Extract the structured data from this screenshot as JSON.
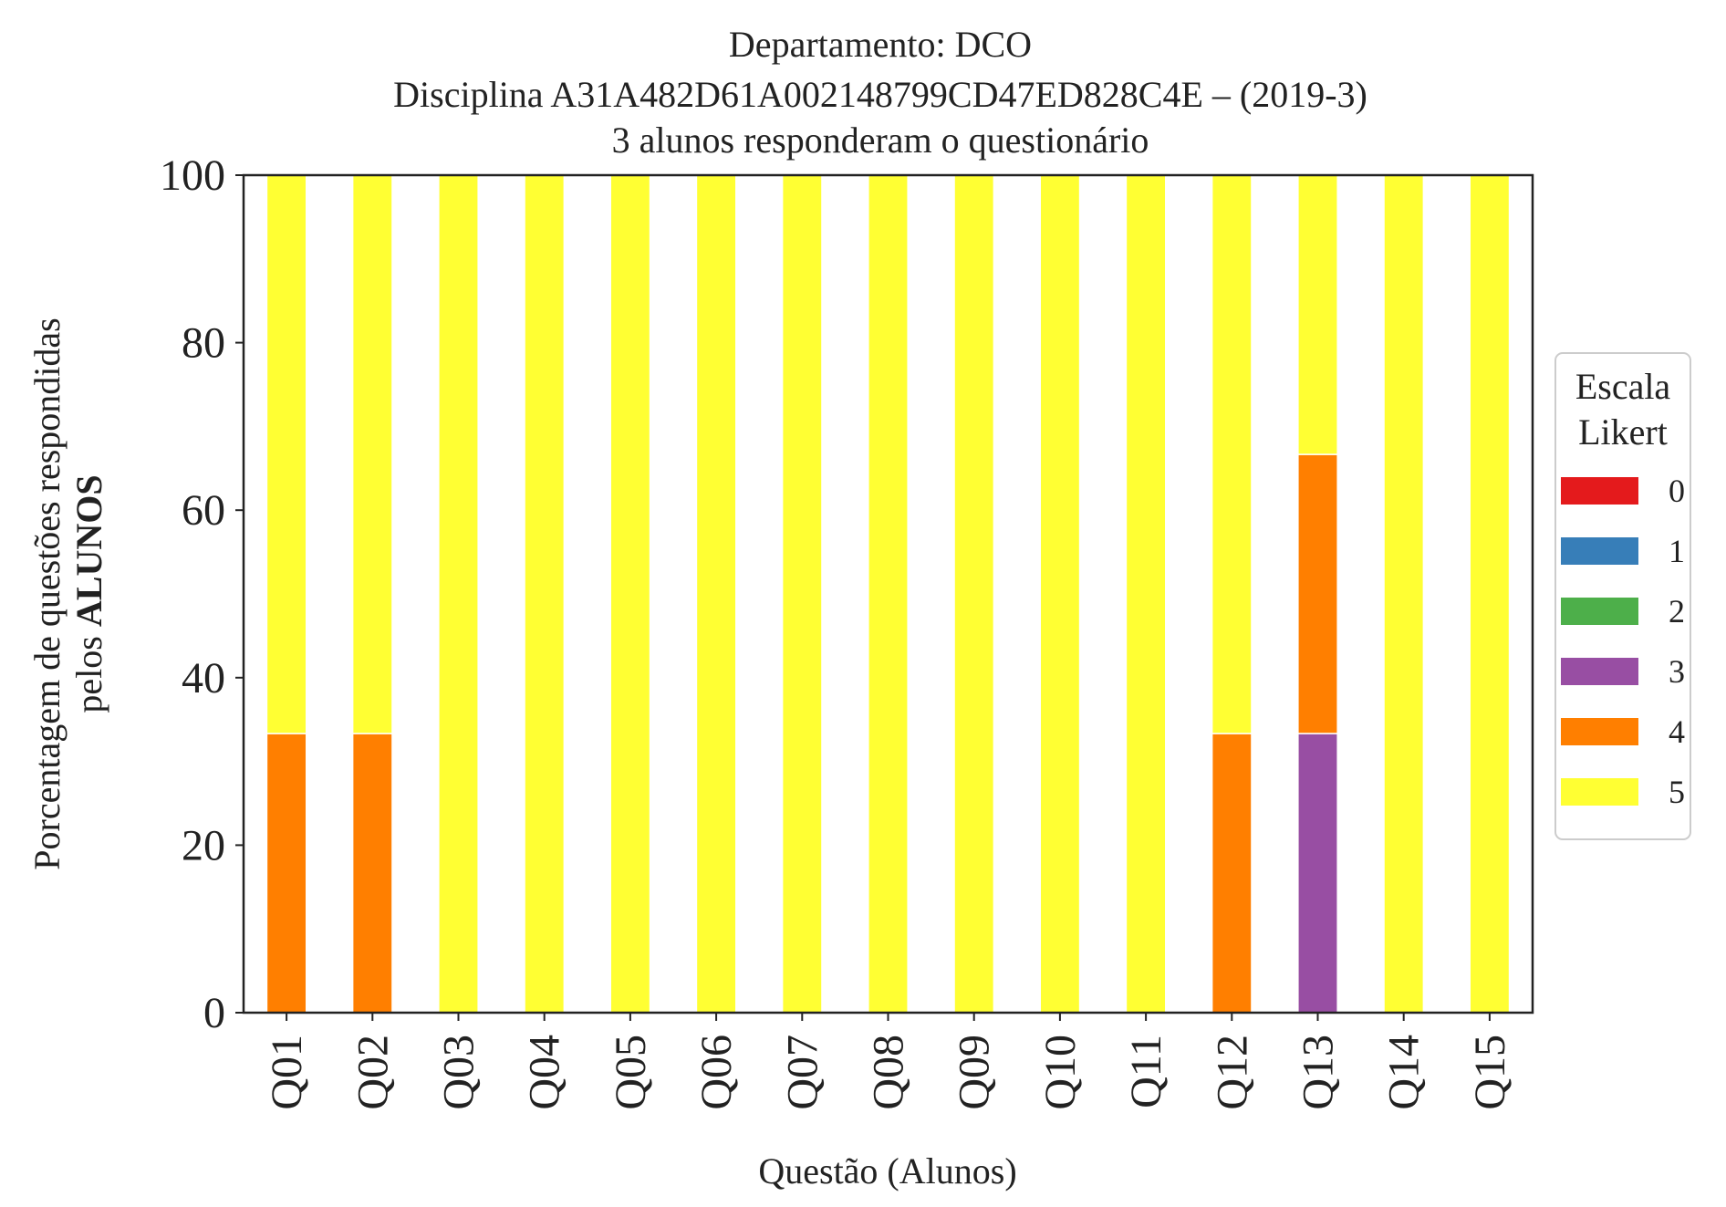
{
  "chart_data": {
    "type": "bar",
    "stacked": true,
    "title_lines": [
      "Departamento: DCO",
      "Disciplina A31A482D61A002148799CD47ED828C4E – (2019-3)",
      "3 alunos responderam o questionário"
    ],
    "xlabel": "Questão (Alunos)",
    "ylabel_line1": "Porcentagem de questões respondidas",
    "ylabel_line2_prefix": "pelos ",
    "ylabel_line2_bold": "ALUNOS",
    "ylim": [
      0,
      100
    ],
    "yticks": [
      "0",
      "20",
      "40",
      "60",
      "80",
      "100"
    ],
    "grid": false,
    "categories": [
      "Q01",
      "Q02",
      "Q03",
      "Q04",
      "Q05",
      "Q06",
      "Q07",
      "Q08",
      "Q09",
      "Q10",
      "Q11",
      "Q12",
      "Q13",
      "Q14",
      "Q15"
    ],
    "series": [
      {
        "name": "0",
        "color": "#e41a1c",
        "values": [
          0,
          0,
          0,
          0,
          0,
          0,
          0,
          0,
          0,
          0,
          0,
          0,
          0,
          0,
          0
        ]
      },
      {
        "name": "1",
        "color": "#377eb8",
        "values": [
          0,
          0,
          0,
          0,
          0,
          0,
          0,
          0,
          0,
          0,
          0,
          0,
          0,
          0,
          0
        ]
      },
      {
        "name": "2",
        "color": "#4daf4a",
        "values": [
          0,
          0,
          0,
          0,
          0,
          0,
          0,
          0,
          0,
          0,
          0,
          0,
          0,
          0,
          0
        ]
      },
      {
        "name": "3",
        "color": "#984ea3",
        "values": [
          0,
          0,
          0,
          0,
          0,
          0,
          0,
          0,
          0,
          0,
          0,
          0,
          33.33,
          0,
          0
        ]
      },
      {
        "name": "4",
        "color": "#ff7f00",
        "values": [
          33.33,
          33.33,
          0,
          0,
          0,
          0,
          0,
          0,
          0,
          0,
          0,
          33.33,
          33.33,
          0,
          0
        ]
      },
      {
        "name": "5",
        "color": "#ffff33",
        "values": [
          66.67,
          66.67,
          100,
          100,
          100,
          100,
          100,
          100,
          100,
          100,
          100,
          66.67,
          33.34,
          100,
          100
        ]
      }
    ],
    "legend": {
      "title_lines": [
        "Escala",
        "Likert"
      ],
      "placement": "center-right outside"
    }
  }
}
